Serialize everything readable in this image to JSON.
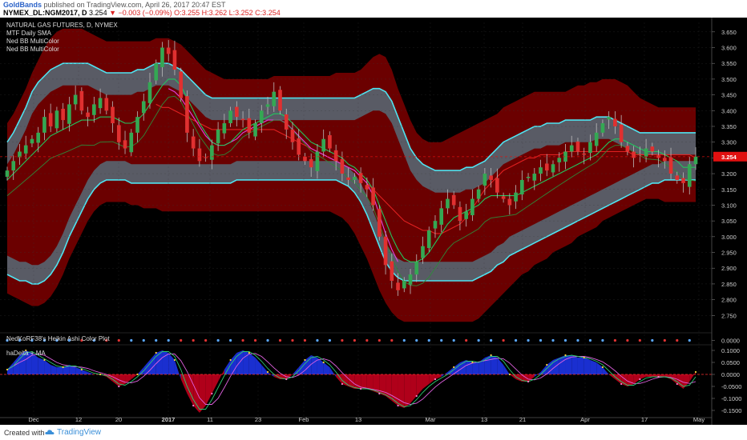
{
  "header": {
    "brand": "GoldBands",
    "published": "published on TradingView.com, April 26, 2017 20:47 EST",
    "symbol": "NYMEX_DL:NGM2017, D",
    "last": "3.254",
    "change": "−0.003 (−0.09%)",
    "ohlc": "O:3.255 H:3.262 L:3.252 C:3.254"
  },
  "legend": {
    "instrument": "NATURAL GAS FUTURES, D, NYMEX",
    "items": [
      "MTF Daily SMA",
      "Ned BB MultiColor",
      "Ned BB MultiColor"
    ]
  },
  "panel2_label": "NedKoRF38's Heikin Ashi Color Plot",
  "panel3_label": "haDelta + MA",
  "footer": {
    "made": "Created with",
    "brand": "TradingView"
  },
  "colors": {
    "background": "#000000",
    "bull": "#34a853",
    "bear": "#e03030",
    "band_outer": "#6b0000",
    "band_inner": "#59606a",
    "band_edge": "#4fe3f0",
    "sma_fast": "#22c55e",
    "sma_mid": "#e040e0",
    "sma_slow": "#e02020",
    "hist_pos": "#1a2fd0",
    "hist_neg": "#b0001a",
    "last_price": "#e01010"
  },
  "chart_data": [
    {
      "type": "candlestick",
      "ylim": [
        2.7,
        3.68
      ],
      "yticks": [
        "3.650",
        "3.600",
        "3.550",
        "3.500",
        "3.450",
        "3.400",
        "3.350",
        "3.300",
        "3.250",
        "3.200",
        "3.150",
        "3.100",
        "3.050",
        "3.000",
        "2.950",
        "2.900",
        "2.850",
        "2.800",
        "2.750"
      ],
      "last_price": "3.254",
      "xticks": [
        "Dec",
        "12",
        "20",
        "2017",
        "11",
        "23",
        "Feb",
        "13",
        "Mar",
        "13",
        "21",
        "Apr",
        "17",
        "May"
      ],
      "close": [
        3.21,
        3.24,
        3.27,
        3.29,
        3.31,
        3.33,
        3.38,
        3.35,
        3.4,
        3.37,
        3.42,
        3.45,
        3.4,
        3.38,
        3.42,
        3.44,
        3.4,
        3.36,
        3.3,
        3.28,
        3.33,
        3.38,
        3.43,
        3.49,
        3.55,
        3.6,
        3.58,
        3.53,
        3.44,
        3.33,
        3.28,
        3.24,
        3.25,
        3.29,
        3.34,
        3.36,
        3.4,
        3.38,
        3.37,
        3.33,
        3.36,
        3.4,
        3.42,
        3.46,
        3.4,
        3.34,
        3.3,
        3.26,
        3.24,
        3.22,
        3.27,
        3.31,
        3.28,
        3.24,
        3.2,
        3.18,
        3.19,
        3.17,
        3.15,
        3.1,
        3.0,
        2.91,
        2.86,
        2.83,
        2.86,
        2.88,
        2.92,
        2.97,
        3.02,
        3.05,
        3.09,
        3.12,
        3.1,
        3.05,
        3.08,
        3.12,
        3.15,
        3.2,
        3.18,
        3.14,
        3.12,
        3.1,
        3.14,
        3.18,
        3.19,
        3.2,
        3.22,
        3.21,
        3.23,
        3.25,
        3.27,
        3.29,
        3.27,
        3.26,
        3.3,
        3.33,
        3.36,
        3.38,
        3.35,
        3.3,
        3.27,
        3.25,
        3.26,
        3.28,
        3.27,
        3.25,
        3.24,
        3.2,
        3.18,
        3.17,
        3.23,
        3.254
      ],
      "band_outer_upper": [
        3.36,
        3.39,
        3.43,
        3.47,
        3.52,
        3.56,
        3.6,
        3.63,
        3.65,
        3.66,
        3.66,
        3.66,
        3.66,
        3.65,
        3.64,
        3.63,
        3.62,
        3.62,
        3.62,
        3.62,
        3.62,
        3.62,
        3.62,
        3.62,
        3.63,
        3.63,
        3.63,
        3.62,
        3.61,
        3.59,
        3.57,
        3.55,
        3.53,
        3.52,
        3.51,
        3.5,
        3.5,
        3.5,
        3.5,
        3.5,
        3.5,
        3.5,
        3.5,
        3.51,
        3.51,
        3.51,
        3.51,
        3.51,
        3.51,
        3.51,
        3.51,
        3.51,
        3.51,
        3.52,
        3.52,
        3.52,
        3.52,
        3.53,
        3.55,
        3.57,
        3.58,
        3.57,
        3.53,
        3.47,
        3.42,
        3.37,
        3.33,
        3.31,
        3.3,
        3.3,
        3.3,
        3.31,
        3.32,
        3.33,
        3.34,
        3.35,
        3.36,
        3.37,
        3.38,
        3.39,
        3.41,
        3.42,
        3.43,
        3.44,
        3.45,
        3.46,
        3.46,
        3.46,
        3.46,
        3.46,
        3.46,
        3.47,
        3.48,
        3.48,
        3.49,
        3.49,
        3.5,
        3.5,
        3.5,
        3.49,
        3.48,
        3.46,
        3.44,
        3.43,
        3.42,
        3.41,
        3.41,
        3.41,
        3.41,
        3.41,
        3.41,
        3.41
      ],
      "band_inner_upper": [
        3.3,
        3.33,
        3.37,
        3.41,
        3.46,
        3.49,
        3.51,
        3.53,
        3.54,
        3.55,
        3.55,
        3.55,
        3.55,
        3.55,
        3.54,
        3.53,
        3.52,
        3.52,
        3.52,
        3.52,
        3.52,
        3.53,
        3.53,
        3.54,
        3.55,
        3.55,
        3.55,
        3.54,
        3.53,
        3.51,
        3.49,
        3.47,
        3.45,
        3.44,
        3.44,
        3.44,
        3.44,
        3.44,
        3.44,
        3.44,
        3.44,
        3.44,
        3.44,
        3.44,
        3.44,
        3.44,
        3.44,
        3.44,
        3.44,
        3.44,
        3.44,
        3.44,
        3.44,
        3.44,
        3.44,
        3.44,
        3.44,
        3.45,
        3.46,
        3.47,
        3.47,
        3.46,
        3.43,
        3.38,
        3.33,
        3.28,
        3.25,
        3.23,
        3.22,
        3.21,
        3.21,
        3.21,
        3.21,
        3.21,
        3.22,
        3.22,
        3.23,
        3.24,
        3.26,
        3.28,
        3.3,
        3.31,
        3.32,
        3.33,
        3.34,
        3.35,
        3.35,
        3.36,
        3.36,
        3.36,
        3.37,
        3.37,
        3.37,
        3.37,
        3.37,
        3.38,
        3.38,
        3.38,
        3.37,
        3.36,
        3.35,
        3.34,
        3.33,
        3.33,
        3.33,
        3.33,
        3.33,
        3.33,
        3.33,
        3.33,
        3.33,
        3.33
      ],
      "band_inner_lower": [
        2.88,
        2.87,
        2.86,
        2.86,
        2.85,
        2.85,
        2.86,
        2.88,
        2.91,
        2.95,
        3.0,
        3.04,
        3.08,
        3.12,
        3.15,
        3.17,
        3.18,
        3.18,
        3.18,
        3.18,
        3.17,
        3.17,
        3.17,
        3.17,
        3.17,
        3.17,
        3.17,
        3.17,
        3.17,
        3.17,
        3.17,
        3.17,
        3.17,
        3.17,
        3.17,
        3.17,
        3.17,
        3.18,
        3.18,
        3.18,
        3.18,
        3.18,
        3.18,
        3.18,
        3.18,
        3.18,
        3.18,
        3.18,
        3.18,
        3.18,
        3.18,
        3.18,
        3.18,
        3.18,
        3.17,
        3.16,
        3.14,
        3.11,
        3.07,
        3.02,
        2.97,
        2.92,
        2.89,
        2.87,
        2.86,
        2.86,
        2.86,
        2.86,
        2.86,
        2.86,
        2.86,
        2.86,
        2.86,
        2.86,
        2.86,
        2.86,
        2.87,
        2.88,
        2.89,
        2.91,
        2.92,
        2.94,
        2.95,
        2.96,
        2.97,
        2.98,
        2.99,
        3.0,
        3.01,
        3.02,
        3.03,
        3.04,
        3.05,
        3.06,
        3.07,
        3.08,
        3.09,
        3.1,
        3.11,
        3.12,
        3.13,
        3.14,
        3.15,
        3.16,
        3.17,
        3.17,
        3.18,
        3.18,
        3.18,
        3.18,
        3.18,
        3.18
      ],
      "band_outer_lower": [
        2.82,
        2.81,
        2.8,
        2.79,
        2.78,
        2.78,
        2.79,
        2.81,
        2.84,
        2.88,
        2.93,
        2.97,
        3.01,
        3.05,
        3.08,
        3.1,
        3.11,
        3.11,
        3.11,
        3.11,
        3.1,
        3.1,
        3.09,
        3.09,
        3.09,
        3.08,
        3.08,
        3.08,
        3.08,
        3.08,
        3.08,
        3.08,
        3.08,
        3.08,
        3.08,
        3.08,
        3.08,
        3.08,
        3.08,
        3.08,
        3.08,
        3.08,
        3.08,
        3.08,
        3.08,
        3.08,
        3.08,
        3.08,
        3.08,
        3.08,
        3.08,
        3.08,
        3.08,
        3.07,
        3.06,
        3.04,
        3.01,
        2.97,
        2.93,
        2.88,
        2.83,
        2.79,
        2.76,
        2.74,
        2.73,
        2.73,
        2.73,
        2.73,
        2.73,
        2.73,
        2.73,
        2.73,
        2.73,
        2.73,
        2.73,
        2.73,
        2.74,
        2.76,
        2.78,
        2.8,
        2.82,
        2.84,
        2.86,
        2.88,
        2.89,
        2.91,
        2.92,
        2.93,
        2.95,
        2.96,
        2.97,
        2.98,
        3.0,
        3.01,
        3.02,
        3.03,
        3.05,
        3.06,
        3.07,
        3.08,
        3.09,
        3.1,
        3.11,
        3.12,
        3.12,
        3.12,
        3.11,
        3.11,
        3.11,
        3.11,
        3.11,
        3.11
      ],
      "sma_fast": [
        3.18,
        3.2,
        3.22,
        3.24,
        3.26,
        3.28,
        3.3,
        3.32,
        3.33,
        3.34,
        3.35,
        3.36,
        3.37,
        3.37,
        3.37,
        3.38,
        3.38,
        3.38,
        3.37,
        3.36,
        3.36,
        3.37,
        3.39,
        3.42,
        3.45,
        3.48,
        3.5,
        3.5,
        3.48,
        3.44,
        3.4,
        3.36,
        3.33,
        3.3,
        3.29,
        3.29,
        3.3,
        3.32,
        3.34,
        3.35,
        3.36,
        3.37,
        3.38,
        3.39,
        3.39,
        3.38,
        3.36,
        3.34,
        3.32,
        3.3,
        3.29,
        3.28,
        3.27,
        3.26,
        3.25,
        3.23,
        3.22,
        3.2,
        3.18,
        3.15,
        3.1,
        3.05,
        3.0,
        2.96,
        2.93,
        2.92,
        2.92,
        2.93,
        2.95,
        2.98,
        3.01,
        3.04,
        3.06,
        3.07,
        3.08,
        3.09,
        3.1,
        3.12,
        3.13,
        3.13,
        3.13,
        3.13,
        3.13,
        3.14,
        3.15,
        3.16,
        3.17,
        3.18,
        3.19,
        3.2,
        3.21,
        3.22,
        3.23,
        3.24,
        3.25,
        3.26,
        3.28,
        3.3,
        3.31,
        3.31,
        3.3,
        3.29,
        3.28,
        3.27,
        3.27,
        3.27,
        3.26,
        3.25,
        3.24,
        3.22,
        3.22,
        3.22
      ],
      "sma_mid": [
        null,
        null,
        null,
        null,
        null,
        null,
        null,
        null,
        null,
        null,
        null,
        null,
        null,
        null,
        null,
        null,
        null,
        null,
        null,
        null,
        null,
        null,
        null,
        null,
        null,
        null,
        3.47,
        3.46,
        3.44,
        3.41,
        3.38,
        3.35,
        3.32,
        3.3,
        3.29,
        3.29,
        3.3,
        3.31,
        3.33,
        3.34,
        3.35,
        3.36,
        3.37,
        3.37,
        3.37,
        3.36,
        3.34,
        3.32,
        3.3,
        3.28,
        3.27,
        3.26,
        3.25,
        3.24,
        3.23,
        3.22,
        3.21,
        3.19,
        3.17,
        3.13,
        3.07,
        3.01,
        2.96,
        2.92,
        null,
        null,
        null,
        null,
        null,
        null,
        null,
        null,
        null,
        null,
        null,
        null,
        null,
        null,
        null,
        null,
        null,
        null,
        null,
        null,
        null,
        null,
        null,
        null,
        null,
        null,
        null,
        null,
        null,
        null,
        null,
        null,
        null,
        null,
        null,
        null,
        null,
        null,
        null,
        null,
        null,
        null,
        null,
        null,
        null,
        null,
        null,
        null
      ],
      "sma_slow": [
        null,
        null,
        null,
        null,
        null,
        null,
        null,
        null,
        null,
        null,
        null,
        null,
        null,
        null,
        null,
        null,
        null,
        null,
        null,
        null,
        null,
        null,
        null,
        null,
        3.42,
        3.41,
        3.41,
        3.4,
        3.39,
        3.38,
        3.37,
        3.36,
        3.35,
        3.34,
        3.34,
        3.34,
        3.34,
        3.34,
        3.34,
        3.34,
        3.34,
        3.34,
        3.34,
        3.34,
        3.33,
        3.32,
        3.31,
        3.3,
        3.29,
        3.28,
        3.27,
        3.26,
        3.25,
        3.24,
        3.23,
        3.22,
        3.21,
        3.19,
        3.17,
        3.15,
        3.13,
        3.11,
        3.09,
        3.07,
        3.05,
        3.04,
        3.03,
        3.02,
        3.02,
        3.01,
        3.01,
        3.02,
        3.03,
        3.04,
        3.06,
        3.09,
        3.12,
        3.15,
        3.17,
        3.19,
        3.21,
        3.22,
        3.23,
        3.24,
        3.25,
        3.25,
        3.26,
        3.26,
        3.26,
        3.26,
        3.27,
        3.27,
        3.27,
        3.27,
        3.27,
        3.27,
        3.27,
        3.27,
        3.27,
        3.27,
        3.27,
        3.26,
        3.26,
        3.26,
        3.26,
        3.26,
        3.26,
        3.26,
        3.26,
        3.26,
        3.26,
        3.25
      ]
    },
    {
      "type": "dots",
      "ylim": [
        -0.01,
        0.01
      ],
      "yticks": [
        "0.0000"
      ]
    },
    {
      "type": "histogram",
      "ylim": [
        -0.18,
        0.12
      ],
      "yticks": [
        "0.1000",
        "0.0500",
        "0.0000",
        "-0.0500",
        "-0.1000",
        "-0.1500"
      ],
      "values": [
        0.02,
        0.05,
        0.08,
        0.1,
        0.09,
        0.07,
        0.06,
        0.04,
        0.03,
        0.03,
        0.04,
        0.03,
        0.02,
        0.01,
        0.0,
        0.0,
        -0.01,
        -0.03,
        -0.05,
        -0.04,
        -0.02,
        0.0,
        0.03,
        0.06,
        0.09,
        0.1,
        0.09,
        0.06,
        -0.02,
        -0.08,
        -0.13,
        -0.16,
        -0.13,
        -0.08,
        -0.03,
        0.02,
        0.06,
        0.09,
        0.1,
        0.09,
        0.07,
        0.04,
        0.01,
        -0.01,
        -0.02,
        -0.02,
        0.0,
        0.03,
        0.06,
        0.08,
        0.07,
        0.05,
        0.03,
        -0.01,
        -0.04,
        -0.05,
        -0.06,
        -0.06,
        -0.06,
        -0.07,
        -0.08,
        -0.09,
        -0.11,
        -0.13,
        -0.14,
        -0.12,
        -0.09,
        -0.06,
        -0.04,
        -0.02,
        -0.01,
        0.01,
        0.03,
        0.05,
        0.06,
        0.05,
        0.05,
        0.07,
        0.08,
        0.07,
        0.04,
        0.0,
        -0.02,
        -0.03,
        -0.03,
        -0.01,
        0.01,
        0.04,
        0.06,
        0.07,
        0.08,
        0.08,
        0.07,
        0.07,
        0.06,
        0.05,
        0.03,
        0.0,
        -0.02,
        -0.04,
        -0.05,
        -0.04,
        -0.02,
        -0.01,
        -0.01,
        -0.01,
        -0.01,
        -0.02,
        -0.04,
        -0.06,
        -0.03,
        0.01
      ]
    }
  ]
}
